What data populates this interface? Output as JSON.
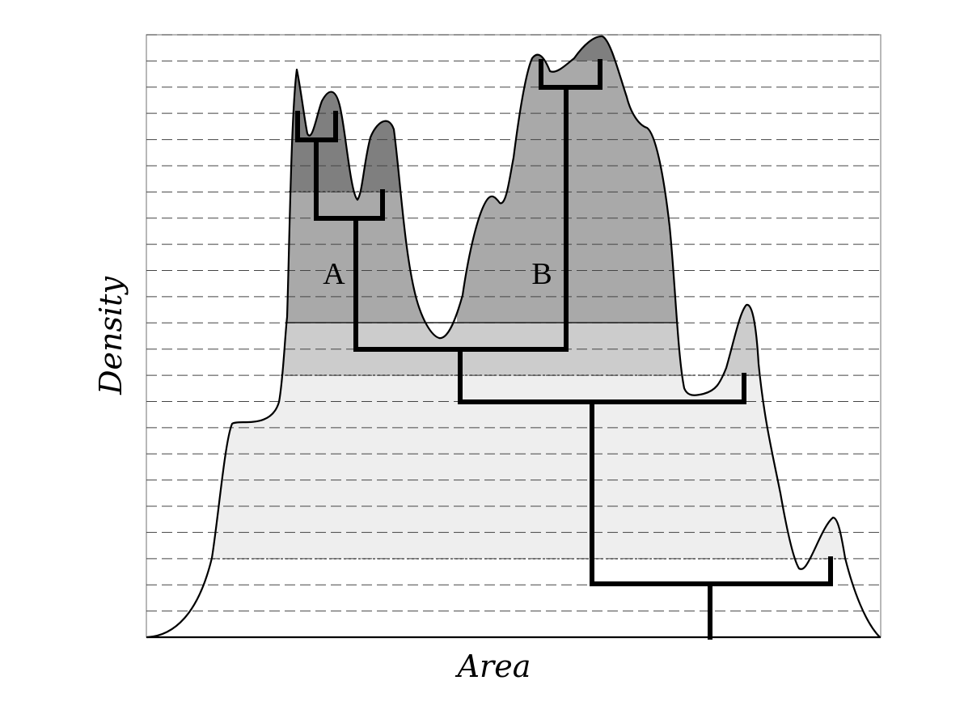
{
  "axes": {
    "x_label": "Area",
    "y_label": "Density"
  },
  "regions": [
    {
      "label": "A"
    },
    {
      "label": "B"
    }
  ],
  "fills": {
    "level_1": "#eeeeee",
    "level_2": "#cccccc",
    "level_3": "#a9a9a9",
    "level_4": "#7f7f7f"
  },
  "gridlines": 23
}
